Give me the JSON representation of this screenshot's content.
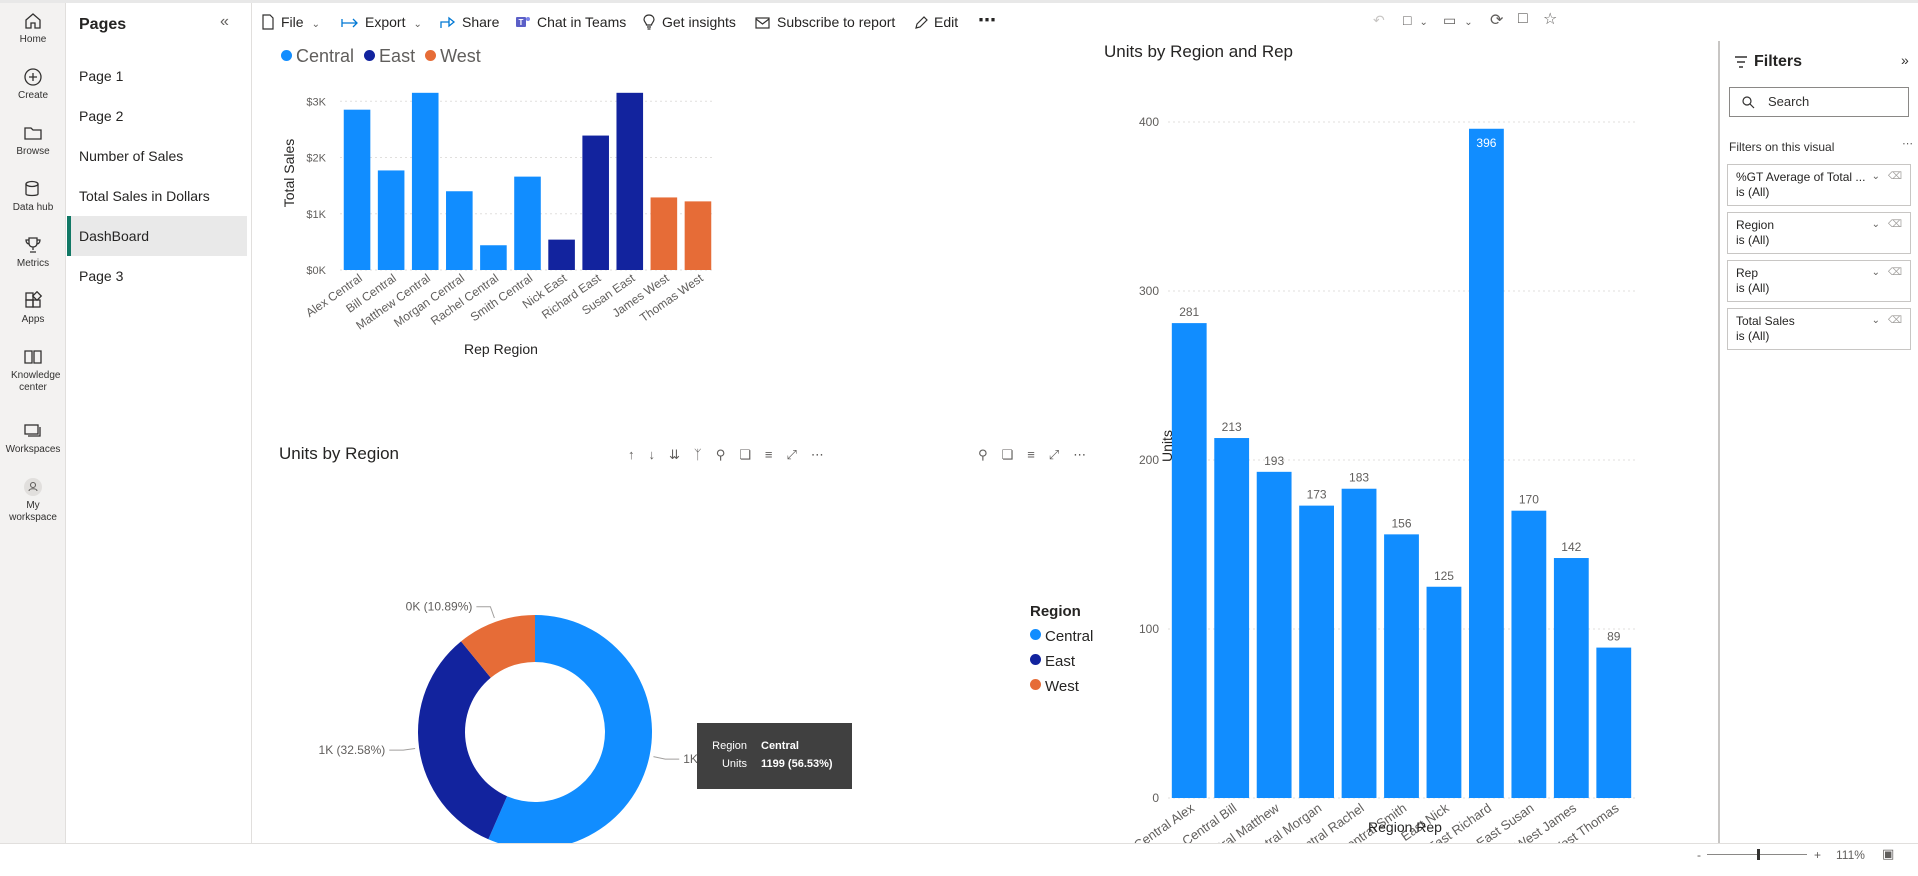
{
  "rail": [
    {
      "label": "Home",
      "icon": "home-icon"
    },
    {
      "label": "Create",
      "icon": "plus-circle-icon"
    },
    {
      "label": "Browse",
      "icon": "folder-icon"
    },
    {
      "label": "Data hub",
      "icon": "database-icon"
    },
    {
      "label": "Metrics",
      "icon": "trophy-icon"
    },
    {
      "label": "Apps",
      "icon": "apps-grid-icon"
    },
    {
      "label": "Knowledge center",
      "icon": "book-icon"
    },
    {
      "label": "Workspaces",
      "icon": "workspaces-icon"
    },
    {
      "label": "My workspace",
      "icon": "person-icon"
    }
  ],
  "pages": {
    "title": "Pages",
    "items": [
      "Page 1",
      "Page 2",
      "Number of Sales",
      "Total Sales in Dollars",
      "DashBoard",
      "Page 3"
    ],
    "active": "DashBoard"
  },
  "toolbar": {
    "file": "File",
    "export": "Export",
    "share": "Share",
    "chat": "Chat in Teams",
    "insights": "Get insights",
    "subscribe": "Subscribe to report",
    "edit": "Edit",
    "more": "⋯"
  },
  "colors": {
    "central": "#118DFF",
    "east": "#12239E",
    "west": "#E66C37",
    "accent": "#117865"
  },
  "chart_data": [
    {
      "type": "bar",
      "title": "",
      "xlabel": "Rep Region",
      "ylabel": "Total Sales",
      "ylim": [
        0,
        3200
      ],
      "yticks": [
        "$0K",
        "$1K",
        "$2K",
        "$3K"
      ],
      "legend": {
        "position": "top-left",
        "entries": [
          "Central",
          "East",
          "West"
        ]
      },
      "grid": true,
      "categories": [
        "Alex Central",
        "Bill Central",
        "Matthew Central",
        "Morgan Central",
        "Rachel Central",
        "Smith Central",
        "Nick East",
        "Richard East",
        "Susan East",
        "James West",
        "Thomas West"
      ],
      "region": [
        "Central",
        "Central",
        "Central",
        "Central",
        "Central",
        "Central",
        "East",
        "East",
        "East",
        "West",
        "West"
      ],
      "values": [
        2850,
        1770,
        3150,
        1400,
        440,
        1660,
        540,
        2390,
        3150,
        1290,
        1220
      ]
    },
    {
      "type": "pie",
      "title": "Units by Region",
      "legend": {
        "title": "Region",
        "position": "right",
        "entries": [
          "Central",
          "East",
          "West"
        ]
      },
      "labels": [
        "Central",
        "East",
        "West"
      ],
      "values": [
        1199,
        691,
        231
      ],
      "percent": [
        56.53,
        32.58,
        10.89
      ],
      "data_labels": [
        "1K (56.53%)",
        "1K (32.58%)",
        "0K (10.89%)"
      ],
      "tooltip": {
        "region_label": "Region",
        "region_value": "Central",
        "units_label": "Units",
        "units_value": "1199 (56.53%)"
      }
    },
    {
      "type": "bar",
      "title": "Units by Region and Rep",
      "xlabel": "Region Rep",
      "ylabel": "Units",
      "ylim": [
        0,
        400
      ],
      "yticks": [
        "0",
        "100",
        "200",
        "300",
        "400"
      ],
      "grid": true,
      "categories": [
        "Central Alex",
        "Central Bill",
        "Central Matthew",
        "Central Morgan",
        "Central Rachel",
        "Central Smith",
        "East Nick",
        "East Richard",
        "East Susan",
        "West James",
        "West Thomas"
      ],
      "values": [
        281,
        213,
        193,
        173,
        183,
        156,
        125,
        396,
        170,
        142,
        89
      ]
    }
  ],
  "filters": {
    "title": "Filters",
    "search_placeholder": "Search",
    "section": "Filters on this visual",
    "cards": [
      {
        "name": "%GT Average of Total ...",
        "state": "is (All)"
      },
      {
        "name": "Region",
        "state": "is (All)"
      },
      {
        "name": "Rep",
        "state": "is (All)"
      },
      {
        "name": "Total Sales",
        "state": "is (All)"
      }
    ]
  },
  "status": {
    "zoom": "111%",
    "minus": "-",
    "plus": "+"
  }
}
